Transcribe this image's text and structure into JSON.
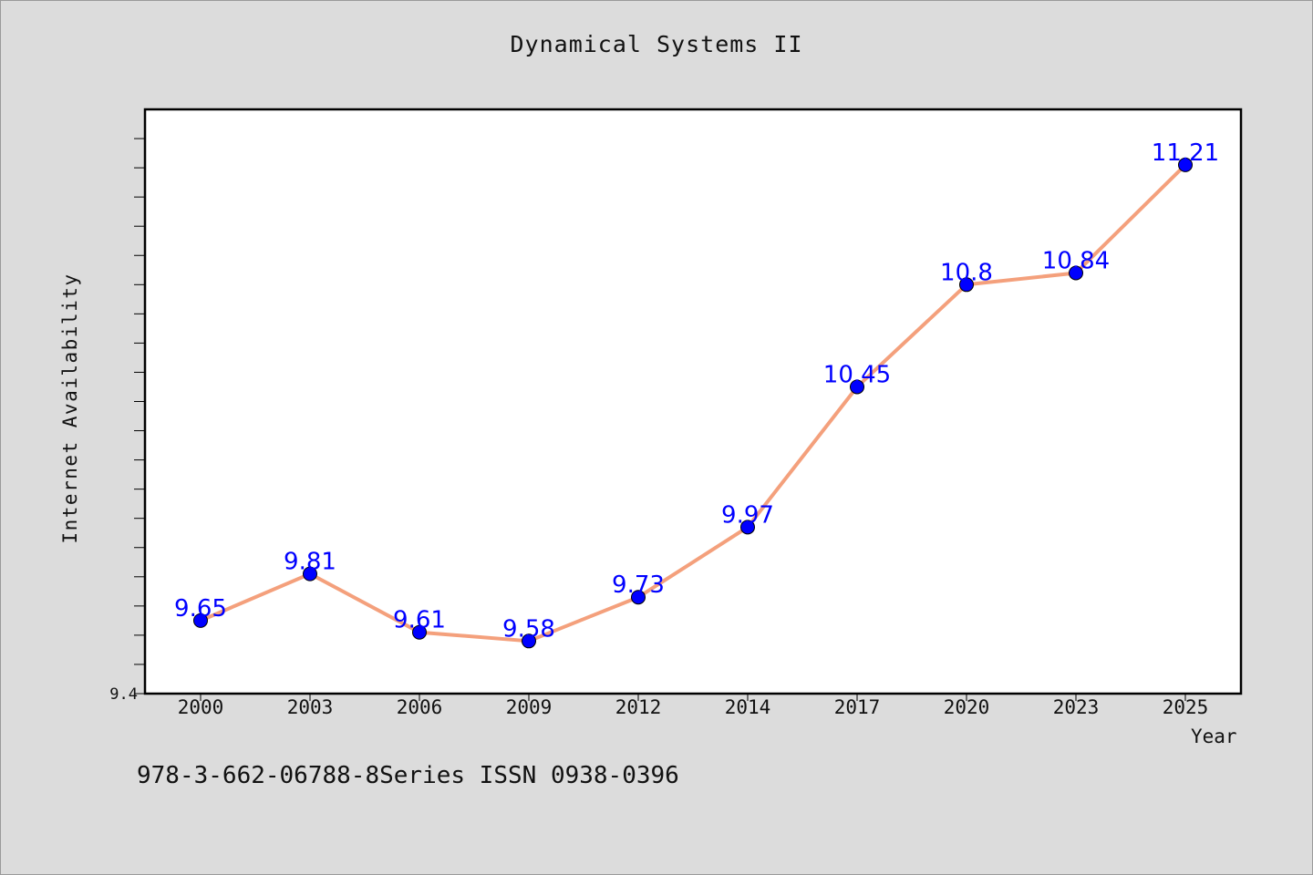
{
  "chart_data": {
    "type": "line",
    "title": "Dynamical Systems II",
    "xlabel": "Year",
    "ylabel": "Internet Availability",
    "categories": [
      "2000",
      "2003",
      "2006",
      "2009",
      "2012",
      "2014",
      "2017",
      "2020",
      "2023",
      "2025"
    ],
    "series": [
      {
        "values": [
          9.65,
          9.81,
          9.61,
          9.58,
          9.73,
          9.97,
          10.45,
          10.8,
          10.84,
          11.21
        ],
        "line_color": "#f4a07c",
        "marker_color": "#0000ff",
        "label_color": "#0000ff"
      }
    ],
    "ylim": [
      9.4,
      11.4
    ],
    "yticks_labeled": [
      "9.4"
    ],
    "y_minor_tick_step": 0.1,
    "grid": false,
    "legend": "none",
    "data_labels": true
  },
  "footer_text": "978-3-662-06788-8Series ISSN 0938-0396"
}
